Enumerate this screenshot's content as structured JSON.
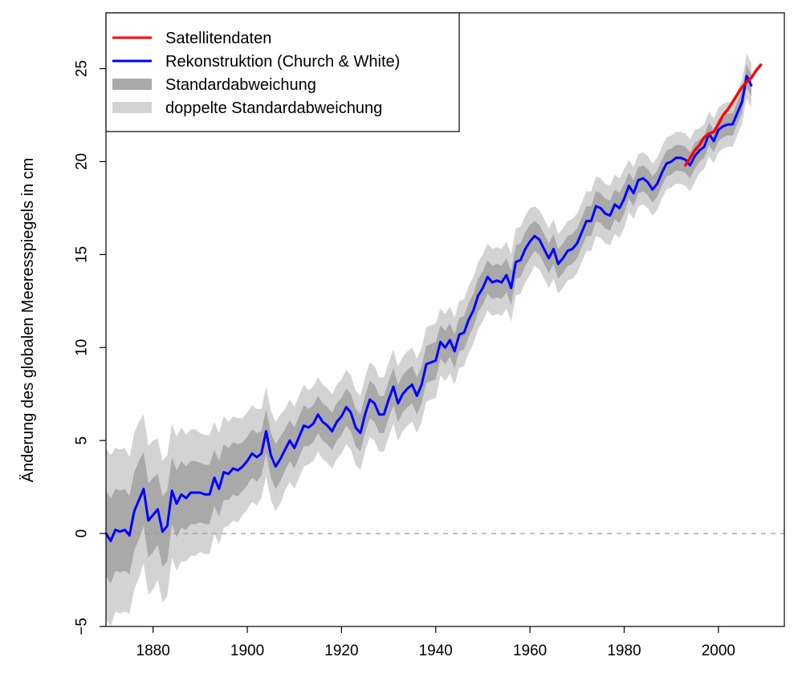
{
  "chart_data": {
    "type": "line",
    "title": "",
    "xlabel": "",
    "ylabel": "Änderung des globalen Meeresspiegels in cm",
    "xlim": [
      1870,
      2014
    ],
    "ylim": [
      -5,
      28
    ],
    "x_ticks": [
      1880,
      1900,
      1920,
      1940,
      1960,
      1980,
      2000
    ],
    "y_ticks": [
      -5,
      0,
      5,
      10,
      15,
      20,
      25
    ],
    "grid": false,
    "reference_line": {
      "y": 0,
      "style": "dashed",
      "color": "#999999"
    },
    "legend": {
      "position": "top-left",
      "entries": [
        {
          "label": "Satellitendaten",
          "color": "#ff0000",
          "kind": "line"
        },
        {
          "label": "Rekonstruktion (Church & White)",
          "color": "#0000ff",
          "kind": "line"
        },
        {
          "label": "Standardabweichung",
          "color": "#a9a9a9",
          "kind": "band"
        },
        {
          "label": "doppelte Standardabweichung",
          "color": "#d3d3d3",
          "kind": "band"
        }
      ]
    },
    "series": [
      {
        "name": "Rekonstruktion (Church & White)",
        "color": "#0000ff",
        "sd": [
          2.3,
          2.3,
          2.2,
          2.2,
          2.2,
          2.1,
          2.1,
          2.1,
          2.0,
          2.0,
          2.0,
          1.9,
          1.9,
          1.9,
          1.8,
          1.8,
          1.8,
          1.7,
          1.7,
          1.7,
          1.6,
          1.6,
          1.6,
          1.5,
          1.5,
          1.5,
          1.4,
          1.4,
          1.4,
          1.3,
          1.3,
          1.3,
          1.3,
          1.2,
          1.2,
          1.2,
          1.2,
          1.2,
          1.1,
          1.1,
          1.1,
          1.1,
          1.1,
          1.0,
          1.0,
          1.0,
          1.0,
          1.0,
          1.0,
          1.0,
          1.0,
          1.0,
          1.0,
          1.0,
          1.0,
          1.0,
          1.0,
          1.0,
          1.0,
          1.0,
          1.0,
          1.0,
          1.0,
          1.0,
          1.0,
          1.0,
          1.0,
          1.0,
          1.0,
          1.0,
          1.0,
          0.9,
          0.9,
          0.9,
          0.9,
          0.9,
          0.9,
          0.9,
          0.9,
          0.9,
          0.9,
          0.9,
          0.9,
          0.9,
          0.9,
          0.9,
          0.9,
          0.9,
          0.9,
          0.9,
          0.9,
          0.8,
          0.8,
          0.8,
          0.8,
          0.8,
          0.8,
          0.8,
          0.8,
          0.8,
          0.8,
          0.8,
          0.8,
          0.8,
          0.8,
          0.8,
          0.8,
          0.8,
          0.8,
          0.8,
          0.8,
          0.7,
          0.7,
          0.7,
          0.7,
          0.7,
          0.7,
          0.7,
          0.7,
          0.7,
          0.7,
          0.7,
          0.7,
          0.7,
          0.7,
          0.7,
          0.6,
          0.6,
          0.6,
          0.6,
          0.6,
          0.6,
          0.6,
          0.6,
          0.6,
          0.6,
          0.6,
          0.6
        ],
        "points": [
          [
            1870,
            0.0
          ],
          [
            1871,
            -0.4
          ],
          [
            1872,
            0.2
          ],
          [
            1873,
            0.1
          ],
          [
            1874,
            0.2
          ],
          [
            1875,
            -0.1
          ],
          [
            1876,
            1.2
          ],
          [
            1877,
            1.8
          ],
          [
            1878,
            2.4
          ],
          [
            1879,
            0.7
          ],
          [
            1880,
            1.0
          ],
          [
            1881,
            1.3
          ],
          [
            1882,
            0.1
          ],
          [
            1883,
            0.4
          ],
          [
            1884,
            2.3
          ],
          [
            1885,
            1.6
          ],
          [
            1886,
            2.1
          ],
          [
            1887,
            1.9
          ],
          [
            1888,
            2.2
          ],
          [
            1889,
            2.2
          ],
          [
            1890,
            2.2
          ],
          [
            1891,
            2.1
          ],
          [
            1892,
            2.1
          ],
          [
            1893,
            3.0
          ],
          [
            1894,
            2.4
          ],
          [
            1895,
            3.3
          ],
          [
            1896,
            3.2
          ],
          [
            1897,
            3.5
          ],
          [
            1898,
            3.4
          ],
          [
            1899,
            3.6
          ],
          [
            1900,
            3.9
          ],
          [
            1901,
            4.3
          ],
          [
            1902,
            4.1
          ],
          [
            1903,
            4.3
          ],
          [
            1904,
            5.5
          ],
          [
            1905,
            4.2
          ],
          [
            1906,
            3.6
          ],
          [
            1907,
            4.0
          ],
          [
            1908,
            4.5
          ],
          [
            1909,
            5.0
          ],
          [
            1910,
            4.6
          ],
          [
            1911,
            5.2
          ],
          [
            1912,
            5.8
          ],
          [
            1913,
            5.7
          ],
          [
            1914,
            5.9
          ],
          [
            1915,
            6.4
          ],
          [
            1916,
            6.0
          ],
          [
            1917,
            5.8
          ],
          [
            1918,
            5.5
          ],
          [
            1919,
            6.0
          ],
          [
            1920,
            6.3
          ],
          [
            1921,
            6.8
          ],
          [
            1922,
            6.5
          ],
          [
            1923,
            5.7
          ],
          [
            1924,
            5.4
          ],
          [
            1925,
            6.4
          ],
          [
            1926,
            7.2
          ],
          [
            1927,
            7.0
          ],
          [
            1928,
            6.4
          ],
          [
            1929,
            6.4
          ],
          [
            1930,
            7.2
          ],
          [
            1931,
            7.9
          ],
          [
            1932,
            7.0
          ],
          [
            1933,
            7.5
          ],
          [
            1934,
            7.8
          ],
          [
            1935,
            8.0
          ],
          [
            1936,
            7.4
          ],
          [
            1937,
            8.0
          ],
          [
            1938,
            9.1
          ],
          [
            1939,
            9.2
          ],
          [
            1940,
            9.3
          ],
          [
            1941,
            10.3
          ],
          [
            1942,
            10.0
          ],
          [
            1943,
            10.4
          ],
          [
            1944,
            9.8
          ],
          [
            1945,
            10.7
          ],
          [
            1946,
            10.8
          ],
          [
            1947,
            11.5
          ],
          [
            1948,
            12.0
          ],
          [
            1949,
            12.8
          ],
          [
            1950,
            13.2
          ],
          [
            1951,
            13.8
          ],
          [
            1952,
            13.5
          ],
          [
            1953,
            13.6
          ],
          [
            1954,
            13.5
          ],
          [
            1955,
            13.9
          ],
          [
            1956,
            13.2
          ],
          [
            1957,
            14.6
          ],
          [
            1958,
            14.7
          ],
          [
            1959,
            15.3
          ],
          [
            1960,
            15.7
          ],
          [
            1961,
            16.0
          ],
          [
            1962,
            15.8
          ],
          [
            1963,
            15.3
          ],
          [
            1964,
            14.8
          ],
          [
            1965,
            15.3
          ],
          [
            1966,
            14.5
          ],
          [
            1967,
            14.8
          ],
          [
            1968,
            15.2
          ],
          [
            1969,
            15.3
          ],
          [
            1970,
            15.6
          ],
          [
            1971,
            16.2
          ],
          [
            1972,
            16.8
          ],
          [
            1973,
            16.8
          ],
          [
            1974,
            17.6
          ],
          [
            1975,
            17.5
          ],
          [
            1976,
            17.2
          ],
          [
            1977,
            17.1
          ],
          [
            1978,
            17.7
          ],
          [
            1979,
            17.5
          ],
          [
            1980,
            18.0
          ],
          [
            1981,
            18.7
          ],
          [
            1982,
            18.3
          ],
          [
            1983,
            19.0
          ],
          [
            1984,
            19.1
          ],
          [
            1985,
            18.9
          ],
          [
            1986,
            18.5
          ],
          [
            1987,
            18.8
          ],
          [
            1988,
            19.4
          ],
          [
            1989,
            19.9
          ],
          [
            1990,
            20.0
          ],
          [
            1991,
            20.2
          ],
          [
            1992,
            20.2
          ],
          [
            1993,
            20.1
          ],
          [
            1994,
            19.8
          ],
          [
            1995,
            20.3
          ],
          [
            1996,
            20.6
          ],
          [
            1997,
            20.8
          ],
          [
            1998,
            21.5
          ],
          [
            1999,
            21.1
          ],
          [
            2000,
            21.7
          ],
          [
            2001,
            21.9
          ],
          [
            2002,
            22.0
          ],
          [
            2003,
            22.0
          ],
          [
            2004,
            22.6
          ],
          [
            2005,
            23.2
          ],
          [
            2006,
            24.6
          ],
          [
            2007,
            24.1
          ]
        ]
      },
      {
        "name": "Satellitendaten",
        "color": "#ff0000",
        "points": [
          [
            1993,
            19.8
          ],
          [
            1994,
            20.2
          ],
          [
            1995,
            20.6
          ],
          [
            1996,
            20.9
          ],
          [
            1997,
            21.3
          ],
          [
            1998,
            21.5
          ],
          [
            1999,
            21.6
          ],
          [
            2000,
            22.0
          ],
          [
            2001,
            22.5
          ],
          [
            2002,
            22.8
          ],
          [
            2003,
            23.2
          ],
          [
            2004,
            23.6
          ],
          [
            2005,
            24.0
          ],
          [
            2006,
            24.3
          ],
          [
            2007,
            24.5
          ],
          [
            2008,
            24.9
          ],
          [
            2009,
            25.2
          ]
        ]
      }
    ]
  }
}
